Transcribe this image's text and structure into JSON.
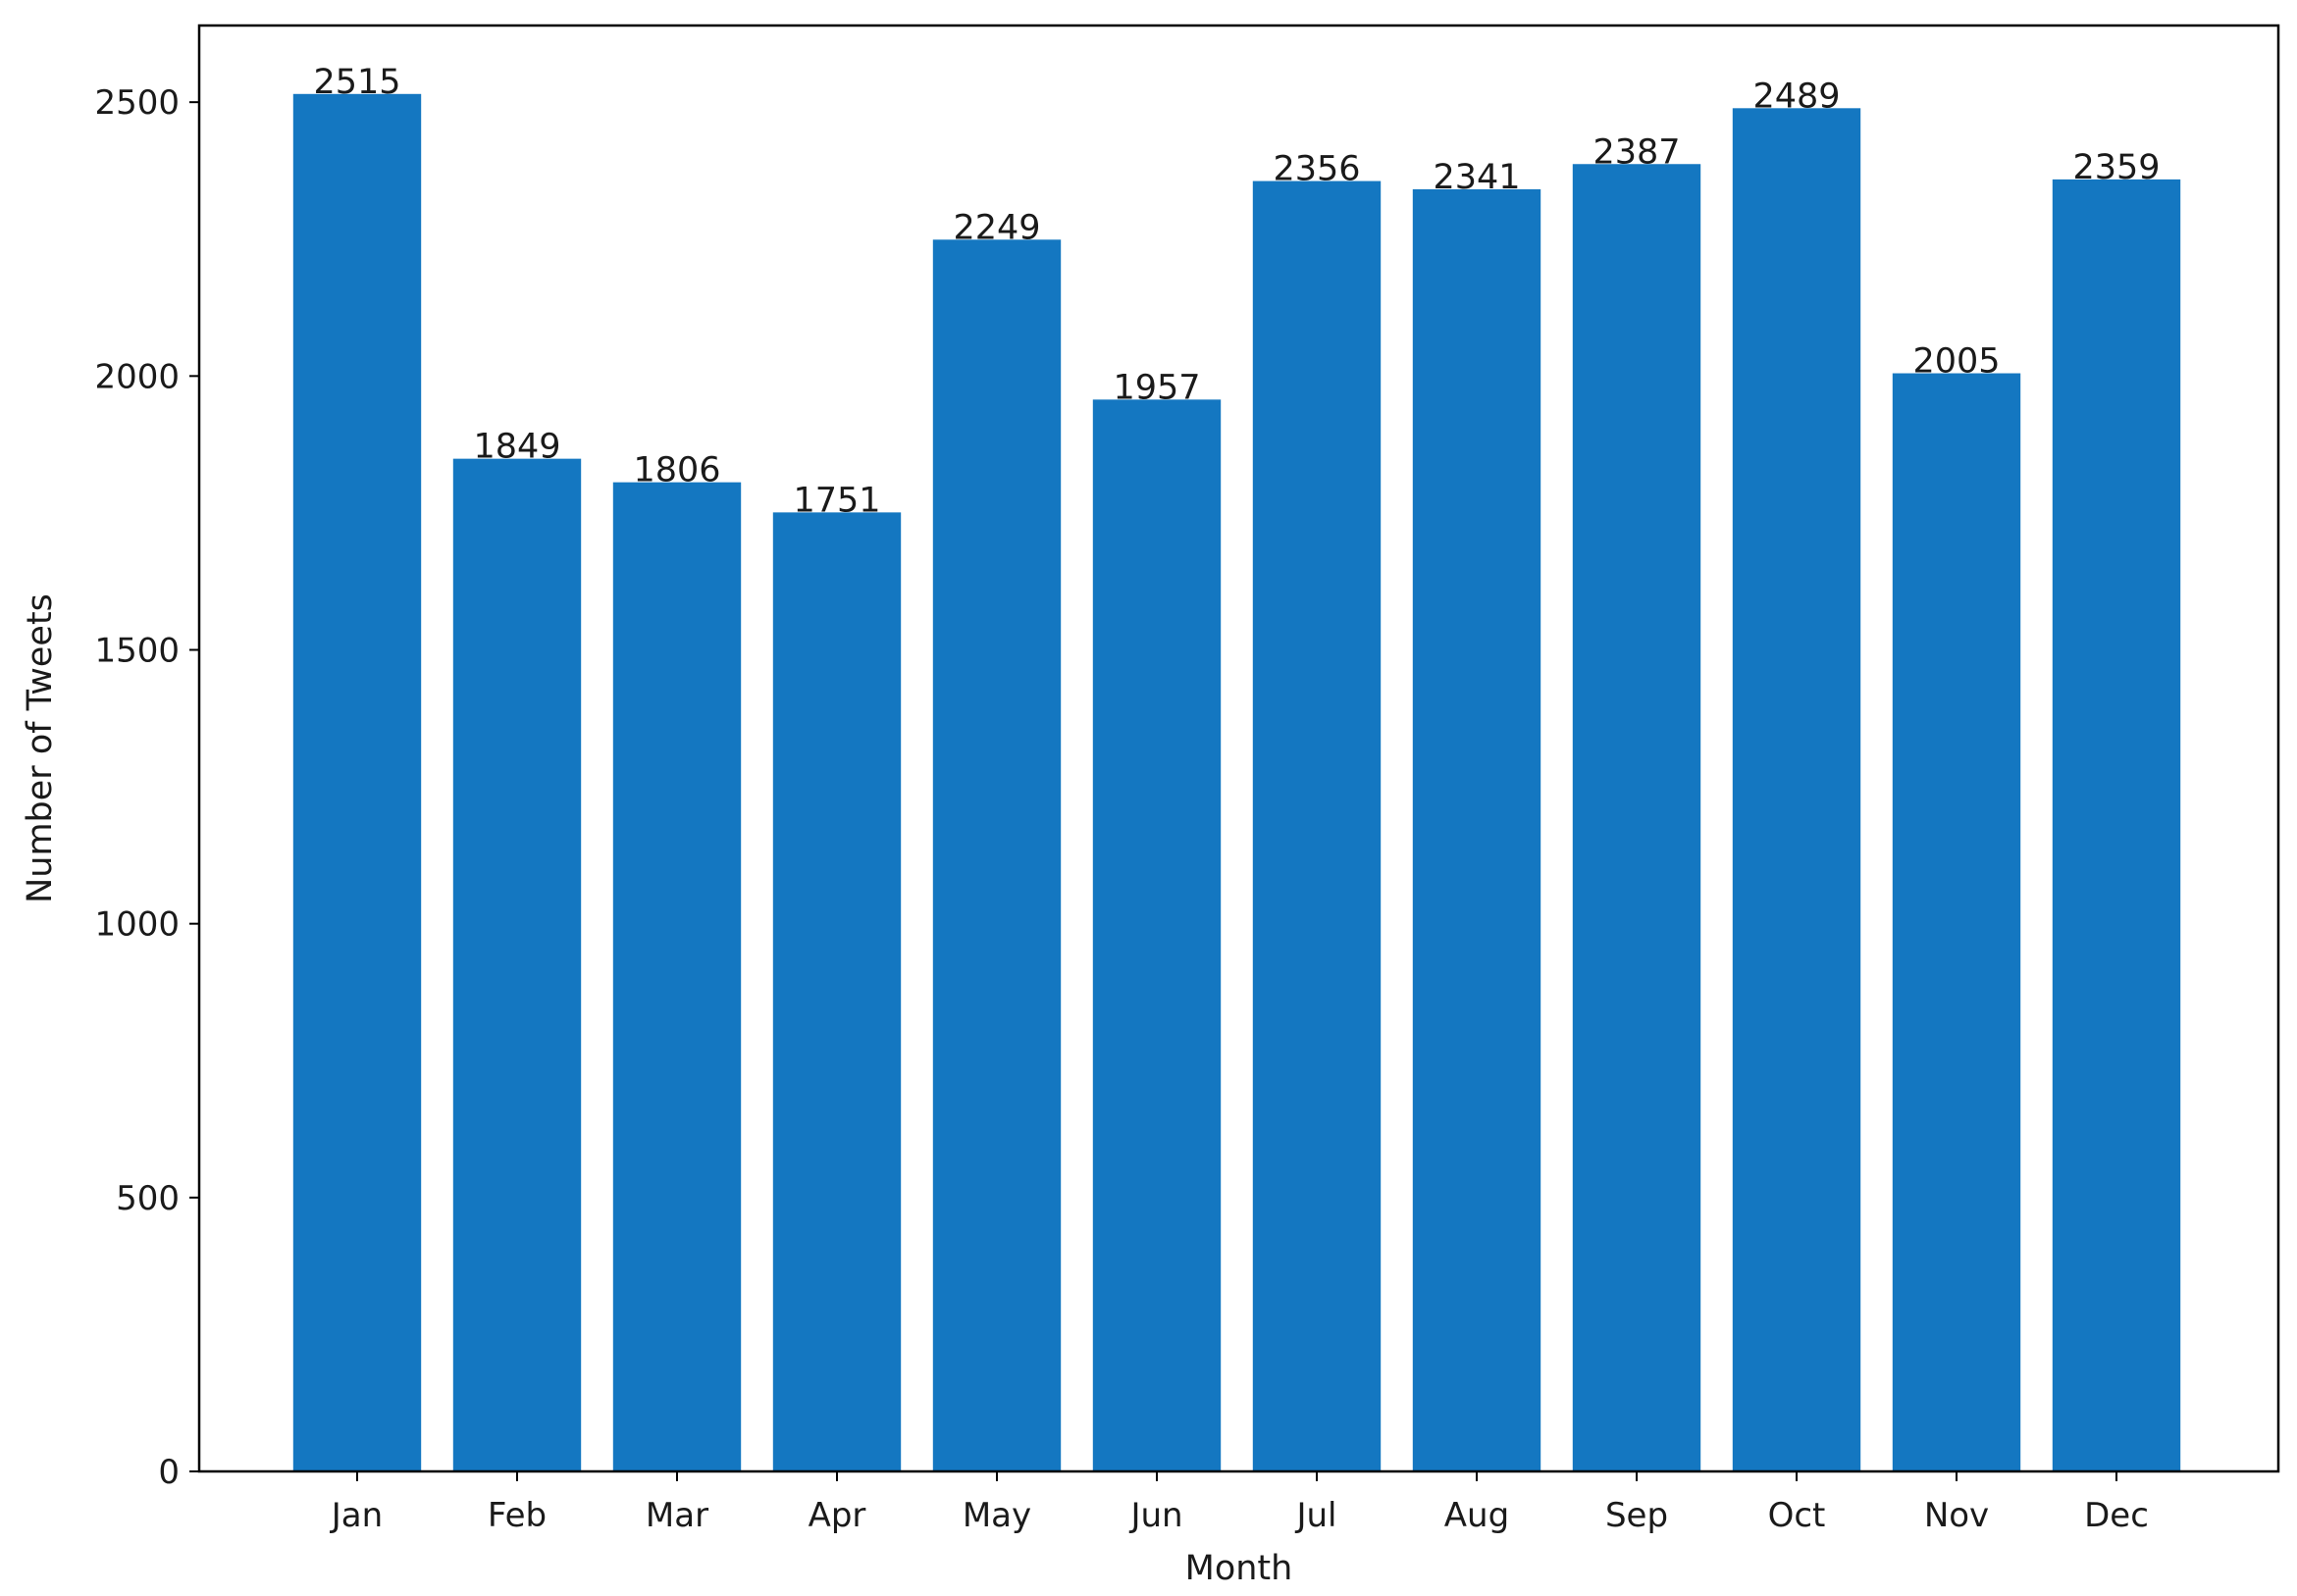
{
  "chart_data": {
    "type": "bar",
    "title": "",
    "xlabel": "Month",
    "ylabel": "Number of Tweets",
    "categories": [
      "Jan",
      "Feb",
      "Mar",
      "Apr",
      "May",
      "Jun",
      "Jul",
      "Aug",
      "Sep",
      "Oct",
      "Nov",
      "Dec"
    ],
    "values": [
      2515,
      1849,
      1806,
      1751,
      2249,
      1957,
      2356,
      2341,
      2387,
      2489,
      2005,
      2359
    ],
    "ylim": [
      0,
      2640
    ],
    "yticks": [
      0,
      500,
      1000,
      1500,
      2000,
      2500
    ],
    "bar_color": "#1477c1",
    "grid": false,
    "legend": "none",
    "data_labels": true
  }
}
